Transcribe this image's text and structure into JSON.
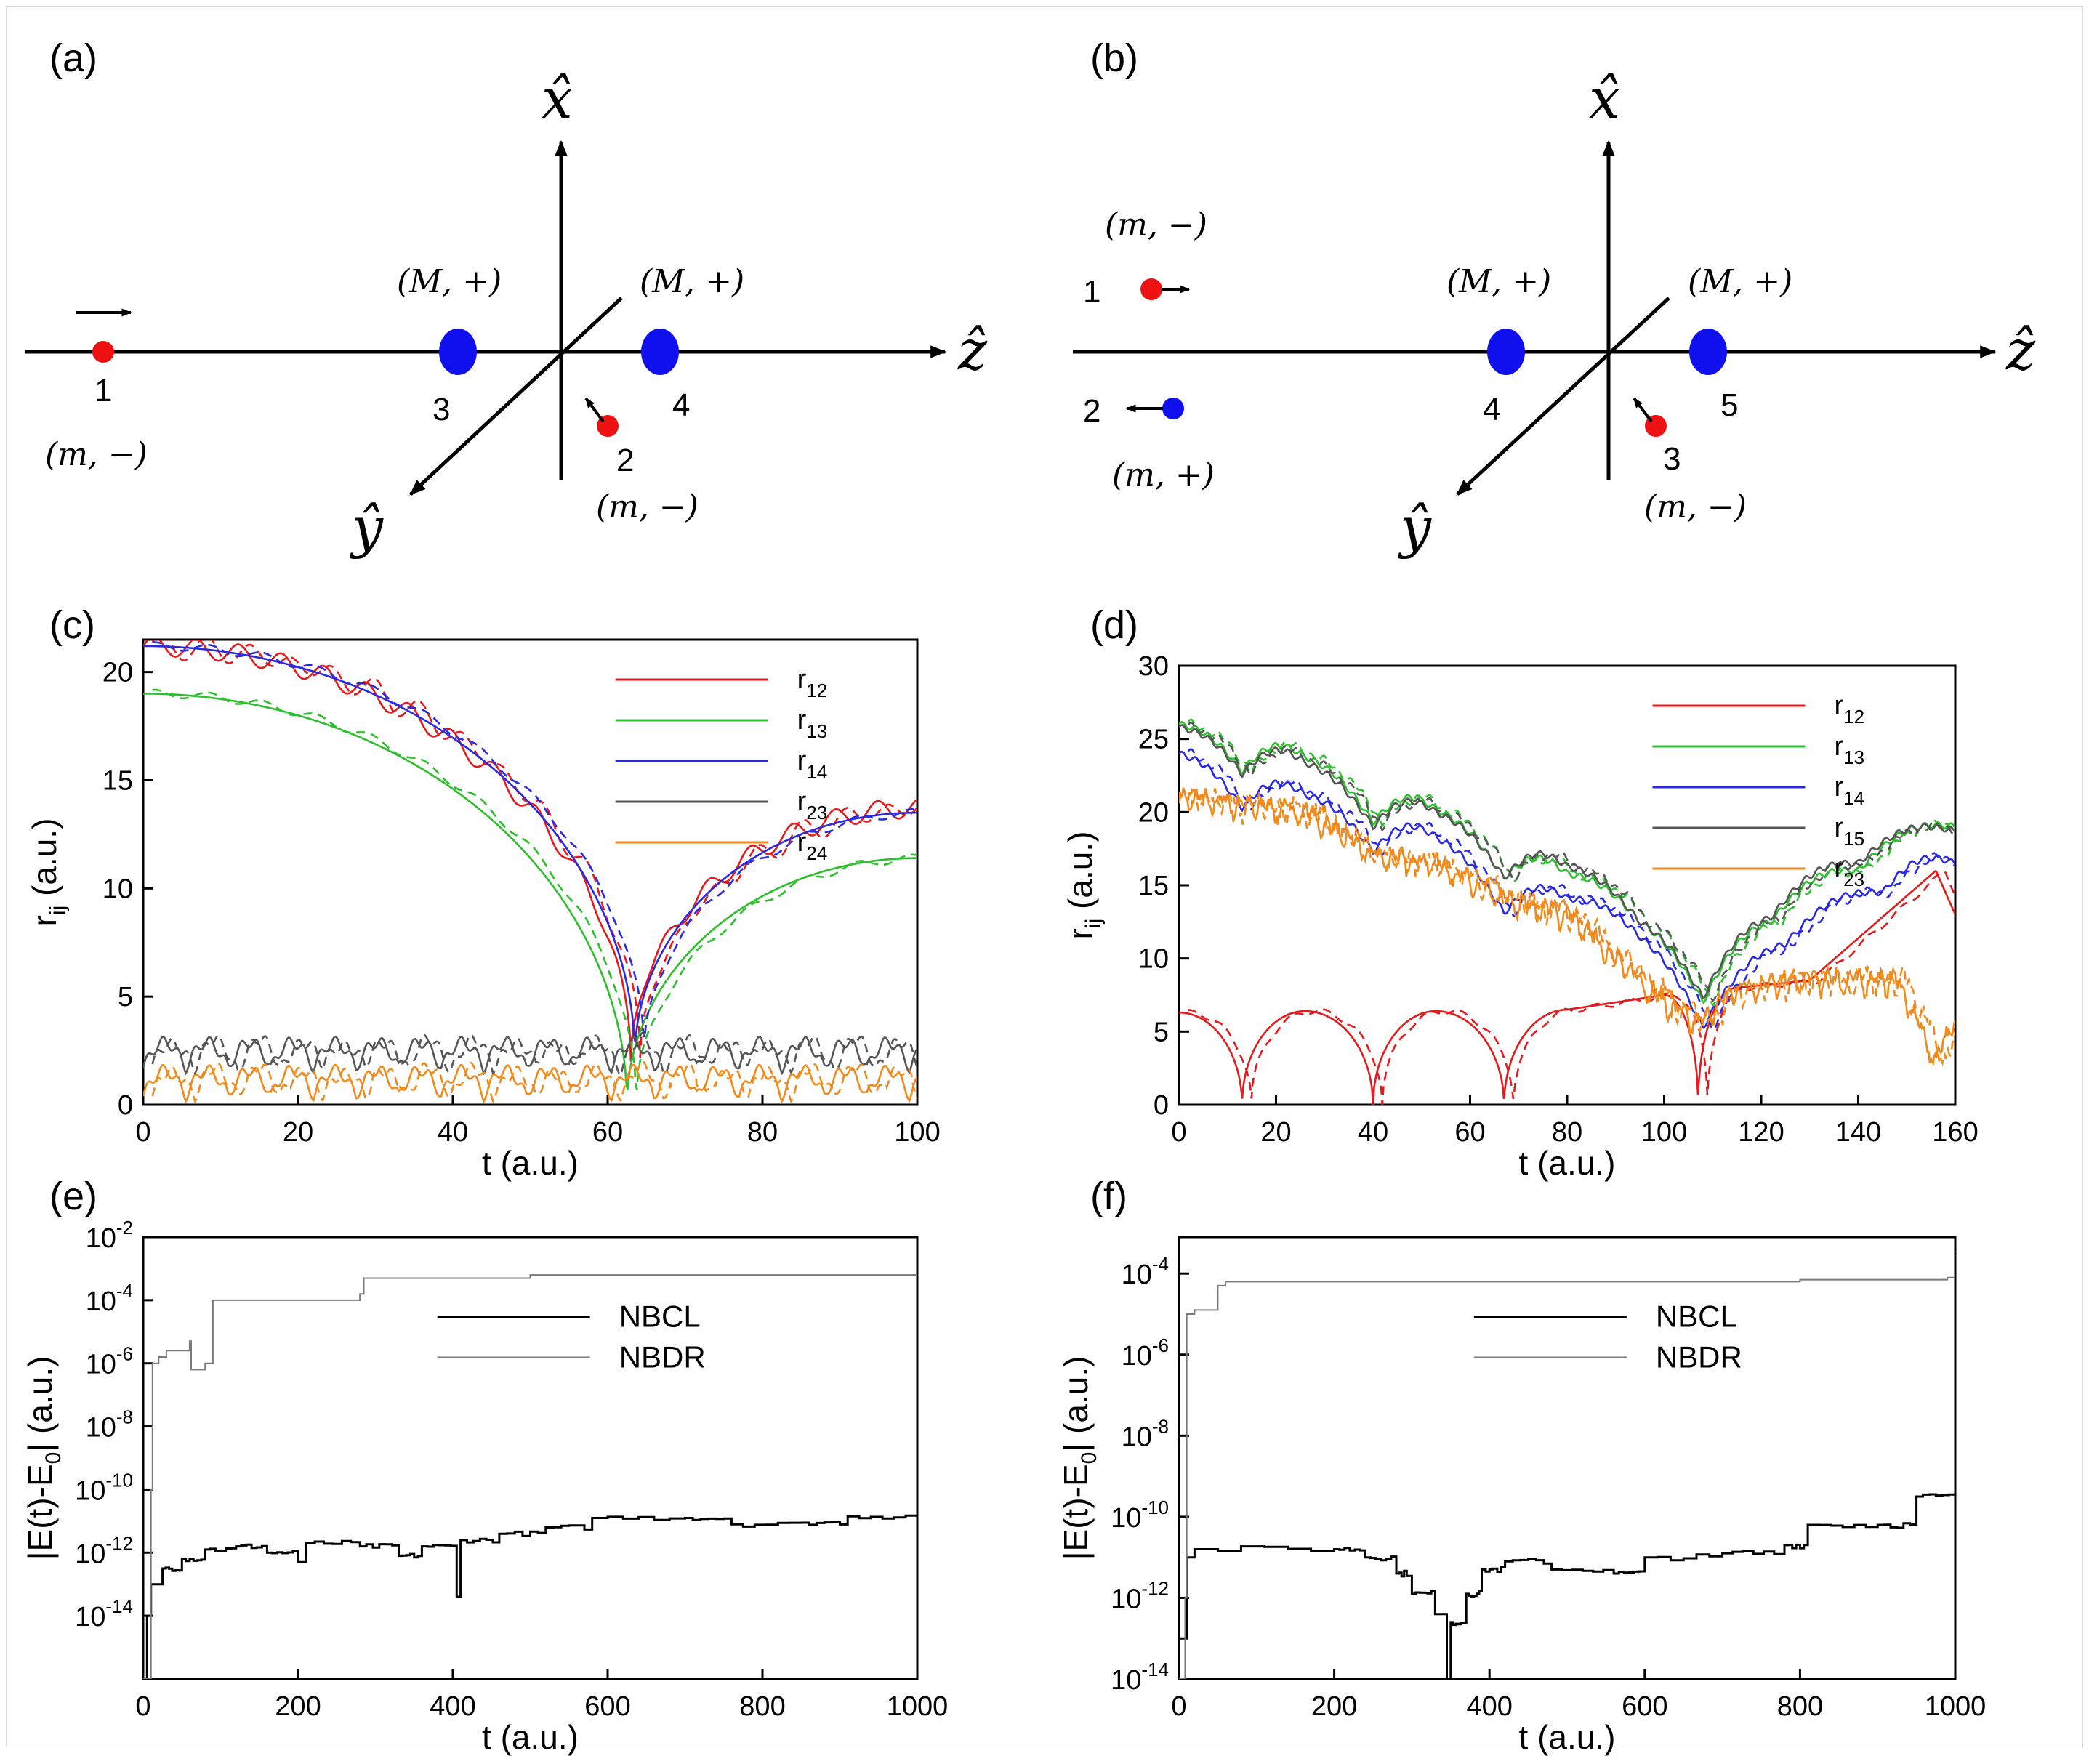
{
  "panels": {
    "a": {
      "label": "(a)",
      "axes": {
        "x": "x̂",
        "y": "ŷ",
        "z": "ẑ"
      },
      "particles": [
        {
          "id": "1",
          "charge": "(m, −)",
          "color": "#ee1111",
          "kind": "light"
        },
        {
          "id": "2",
          "charge": "(m, −)",
          "color": "#ee1111",
          "kind": "light"
        },
        {
          "id": "3",
          "charge": "(M, +)",
          "color": "#1010ee",
          "kind": "heavy"
        },
        {
          "id": "4",
          "charge": "(M, +)",
          "color": "#1010ee",
          "kind": "heavy"
        }
      ]
    },
    "b": {
      "label": "(b)",
      "axes": {
        "x": "x̂",
        "y": "ŷ",
        "z": "ẑ"
      },
      "particles": [
        {
          "id": "1",
          "charge": "(m, −)",
          "color": "#ee1111",
          "kind": "light"
        },
        {
          "id": "2",
          "charge": "(m, +)",
          "color": "#1010ee",
          "kind": "light"
        },
        {
          "id": "3",
          "charge": "(m, −)",
          "color": "#ee1111",
          "kind": "light"
        },
        {
          "id": "4",
          "charge": "(M, +)",
          "color": "#1010ee",
          "kind": "heavy"
        },
        {
          "id": "5",
          "charge": "(M, +)",
          "color": "#1010ee",
          "kind": "heavy"
        }
      ]
    }
  },
  "chart_data": [
    {
      "panel": "(c)",
      "type": "line",
      "xlabel": "t (a.u.)",
      "ylabel": "r",
      "ylabel_sub": "ij",
      "ylabel_unit": "(a.u.)",
      "xlim": [
        0,
        100
      ],
      "ylim": [
        0,
        21.5
      ],
      "xticks": [
        0,
        20,
        40,
        60,
        80,
        100
      ],
      "yticks": [
        0,
        5,
        10,
        15,
        20
      ],
      "legend_position": "top-right",
      "series": [
        {
          "name": "r",
          "sub": "12",
          "color": "#e41a1c",
          "kind": "dip",
          "start": 21.2,
          "t_min": 63,
          "min": 2.0,
          "end": 13.7,
          "osc_amp": 0.45,
          "osc_period": 5.5
        },
        {
          "name": "r",
          "sub": "13",
          "color": "#2dbf2d",
          "kind": "dip",
          "start": 19.0,
          "t_min": 62.5,
          "min": 0.0,
          "end": 11.4,
          "osc_amp": 0.0,
          "osc_period": 5
        },
        {
          "name": "r",
          "sub": "14",
          "color": "#2a2ae0",
          "kind": "dip",
          "start": 21.2,
          "t_min": 63.5,
          "min": 2.2,
          "end": 13.5,
          "osc_amp": 0.0,
          "osc_period": 5
        },
        {
          "name": "r",
          "sub": "23",
          "color": "#555555",
          "kind": "osc",
          "base": 2.3,
          "amp": 1.2,
          "period": 5.5
        },
        {
          "name": "r",
          "sub": "24",
          "color": "#f08a1c",
          "kind": "osc",
          "base": 1.0,
          "amp": 1.2,
          "period": 5.5
        }
      ]
    },
    {
      "panel": "(d)",
      "type": "line",
      "xlabel": "t (a.u.)",
      "ylabel": "r",
      "ylabel_sub": "ij",
      "ylabel_unit": "(a.u.)",
      "xlim": [
        0,
        160
      ],
      "ylim": [
        0,
        30
      ],
      "xticks": [
        0,
        20,
        40,
        60,
        80,
        100,
        120,
        140,
        160
      ],
      "yticks": [
        0,
        5,
        10,
        15,
        20,
        25,
        30
      ],
      "legend_position": "top-right",
      "series": [
        {
          "name": "r",
          "sub": "12",
          "color": "#e41a1c",
          "kind": "bounce",
          "points": [
            [
              0,
              6.3
            ],
            [
              13,
              0
            ],
            [
              26,
              6.4
            ],
            [
              40,
              0
            ],
            [
              53,
              6.4
            ],
            [
              67,
              0
            ],
            [
              80,
              6.5
            ],
            [
              100,
              7.5
            ],
            [
              107,
              0
            ],
            [
              115,
              8
            ],
            [
              130,
              8.5
            ],
            [
              156,
              16
            ],
            [
              160,
              13
            ]
          ]
        },
        {
          "name": "r",
          "sub": "13",
          "color": "#2dbf2d",
          "kind": "cusps",
          "points": [
            [
              0,
              26
            ],
            [
              13,
              22.8
            ],
            [
              26,
              23.8
            ],
            [
              40,
              19.3
            ],
            [
              53,
              20.2
            ],
            [
              67,
              15.5
            ],
            [
              80,
              15.8
            ],
            [
              95,
              12.5
            ],
            [
              108,
              7.0
            ],
            [
              122,
              12.5
            ],
            [
              140,
              16
            ],
            [
              160,
              19
            ]
          ]
        },
        {
          "name": "r",
          "sub": "14",
          "color": "#2a2ae0",
          "kind": "cusps",
          "points": [
            [
              0,
              24
            ],
            [
              13,
              20.3
            ],
            [
              26,
              21.2
            ],
            [
              40,
              17.3
            ],
            [
              53,
              18.3
            ],
            [
              67,
              13.1
            ],
            [
              80,
              14.1
            ],
            [
              95,
              11.5
            ],
            [
              108,
              5.3
            ],
            [
              125,
              11
            ],
            [
              145,
              14.5
            ],
            [
              160,
              16.5
            ]
          ]
        },
        {
          "name": "r",
          "sub": "15",
          "color": "#555555",
          "kind": "cusps",
          "points": [
            [
              0,
              25.8
            ],
            [
              13,
              22.6
            ],
            [
              26,
              23.4
            ],
            [
              40,
              19
            ],
            [
              53,
              20
            ],
            [
              67,
              15.5
            ],
            [
              80,
              16.3
            ],
            [
              95,
              12.5
            ],
            [
              108,
              7.3
            ],
            [
              122,
              12.8
            ],
            [
              140,
              16.5
            ],
            [
              160,
              18.7
            ]
          ]
        },
        {
          "name": "r",
          "sub": "23",
          "color": "#f08a1c",
          "kind": "noisy",
          "points": [
            [
              0,
              21
            ],
            [
              13,
              20.5
            ],
            [
              26,
              20
            ],
            [
              40,
              17
            ],
            [
              53,
              16.5
            ],
            [
              67,
              14
            ],
            [
              80,
              13
            ],
            [
              100,
              7
            ],
            [
              107,
              5.5
            ],
            [
              115,
              8
            ],
            [
              130,
              8.5
            ],
            [
              148,
              8.5
            ],
            [
              156,
              3
            ],
            [
              160,
              6
            ]
          ]
        }
      ]
    },
    {
      "panel": "(e)",
      "type": "line",
      "yscale": "log",
      "xlabel": "t (a.u.)",
      "ylabel": "|E(t)-E",
      "ylabel_sub": "0",
      "ylabel_unit": "| (a.u.)",
      "xlim": [
        0,
        1000
      ],
      "ylim_exp": [
        -16,
        -2
      ],
      "xticks": [
        0,
        200,
        400,
        600,
        800,
        1000
      ],
      "yticks_exp": [
        -14,
        -12,
        -10,
        -8,
        -6,
        -4,
        -2
      ],
      "legend_position": "center-right",
      "series": [
        {
          "name": "NBCL",
          "color": "#000000",
          "width": 3,
          "steps": [
            [
              0,
              -16
            ],
            [
              5,
              -14
            ],
            [
              10,
              -13
            ],
            [
              25,
              -12.5
            ],
            [
              50,
              -12.2
            ],
            [
              80,
              -11.9
            ],
            [
              120,
              -11.8
            ],
            [
              160,
              -12
            ],
            [
              200,
              -12.3
            ],
            [
              210,
              -11.7
            ],
            [
              280,
              -11.8
            ],
            [
              330,
              -12.1
            ],
            [
              360,
              -11.8
            ],
            [
              405,
              -13.4
            ],
            [
              410,
              -11.6
            ],
            [
              460,
              -11.4
            ],
            [
              520,
              -11.2
            ],
            [
              580,
              -10.9
            ],
            [
              700,
              -10.9
            ],
            [
              760,
              -11.1
            ],
            [
              850,
              -11.05
            ],
            [
              910,
              -10.85
            ],
            [
              1000,
              -10.8
            ]
          ]
        },
        {
          "name": "NBDR",
          "color": "#7a7a7a",
          "width": 2,
          "steps": [
            [
              0,
              -16
            ],
            [
              10,
              -10
            ],
            [
              12,
              -6
            ],
            [
              20,
              -5.8
            ],
            [
              30,
              -5.6
            ],
            [
              60,
              -5.3
            ],
            [
              62,
              -6.2
            ],
            [
              80,
              -6
            ],
            [
              90,
              -4
            ],
            [
              280,
              -3.8
            ],
            [
              285,
              -3.3
            ],
            [
              500,
              -3.2
            ],
            [
              1000,
              -3.1
            ]
          ]
        }
      ]
    },
    {
      "panel": "(f)",
      "type": "line",
      "yscale": "log",
      "xlabel": "t (a.u.)",
      "ylabel": "|E(t)-E",
      "ylabel_sub": "0",
      "ylabel_unit": "| (a.u.)",
      "xlim": [
        0,
        1000
      ],
      "ylim_exp": [
        -14,
        -3.1
      ],
      "xticks": [
        0,
        200,
        400,
        600,
        800,
        1000
      ],
      "yticks_exp": [
        -14,
        -12,
        -10,
        -8,
        -6,
        -4
      ],
      "legend_position": "center-right",
      "series": [
        {
          "name": "NBCL",
          "color": "#000000",
          "width": 3,
          "steps": [
            [
              0,
              -13
            ],
            [
              10,
              -11
            ],
            [
              20,
              -10.8
            ],
            [
              200,
              -10.8
            ],
            [
              240,
              -11
            ],
            [
              280,
              -11.4
            ],
            [
              300,
              -11.9
            ],
            [
              330,
              -12.4
            ],
            [
              345,
              -14
            ],
            [
              350,
              -12.6
            ],
            [
              370,
              -11.9
            ],
            [
              390,
              -11.3
            ],
            [
              420,
              -11.1
            ],
            [
              480,
              -11.3
            ],
            [
              560,
              -11.4
            ],
            [
              600,
              -11
            ],
            [
              700,
              -10.9
            ],
            [
              780,
              -10.7
            ],
            [
              810,
              -10.2
            ],
            [
              900,
              -10.2
            ],
            [
              950,
              -9.5
            ],
            [
              1000,
              -9.5
            ]
          ]
        },
        {
          "name": "NBDR",
          "color": "#7a7a7a",
          "width": 2,
          "steps": [
            [
              0,
              -14
            ],
            [
              8,
              -12
            ],
            [
              10,
              -5
            ],
            [
              20,
              -4.9
            ],
            [
              50,
              -4.3
            ],
            [
              60,
              -4.2
            ],
            [
              800,
              -4.15
            ],
            [
              990,
              -4.1
            ],
            [
              1000,
              -3.5
            ]
          ]
        }
      ]
    }
  ]
}
